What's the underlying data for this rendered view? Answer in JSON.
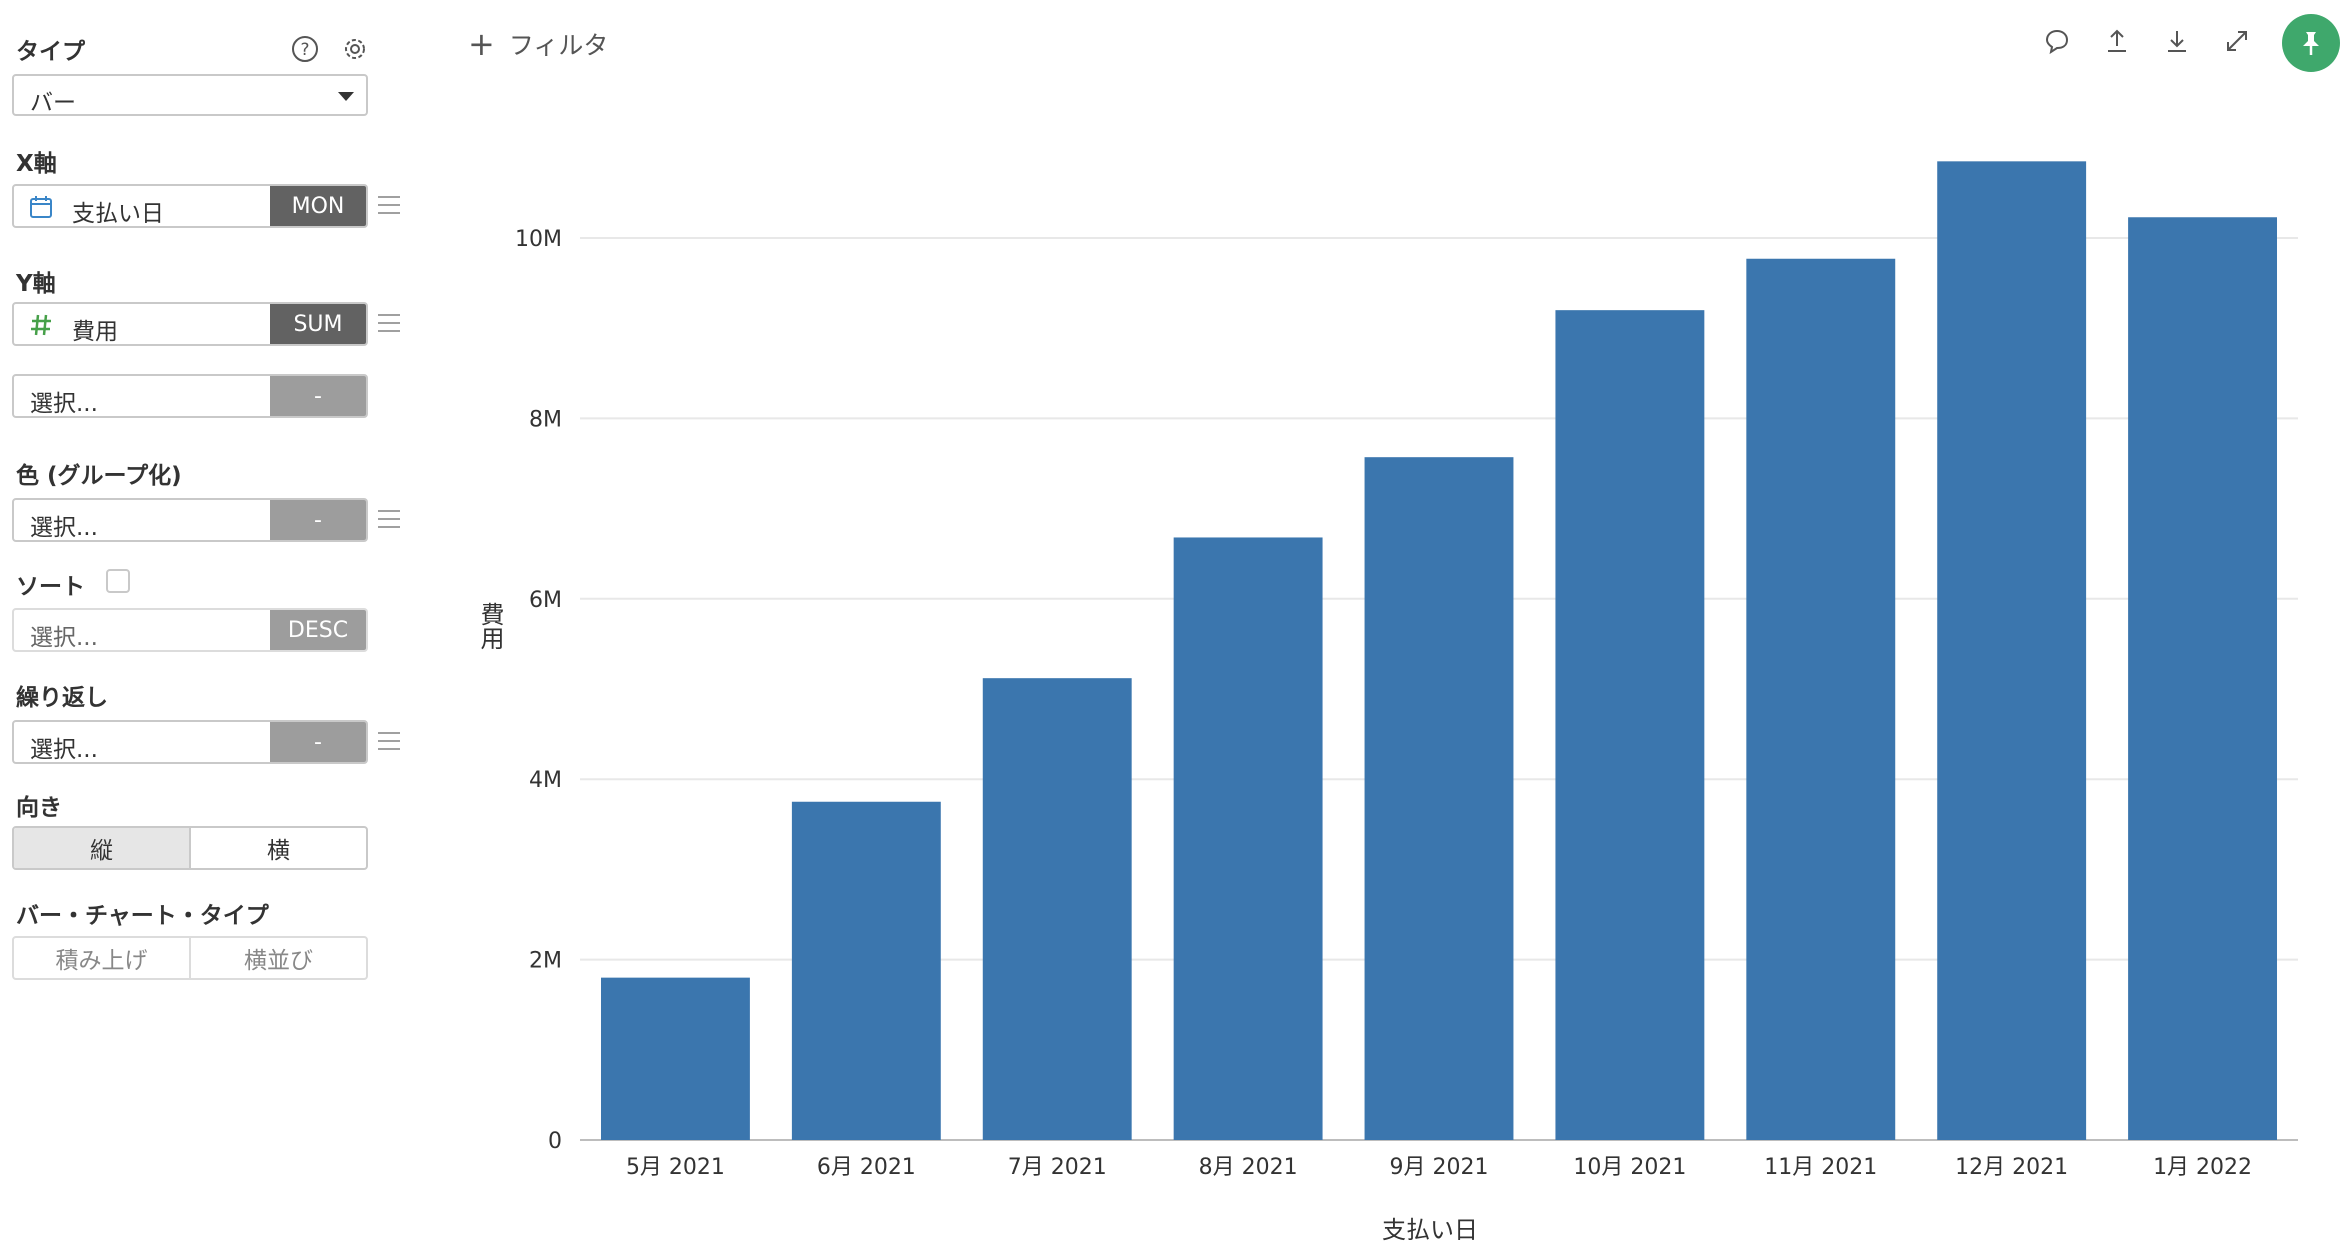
{
  "sidebar": {
    "type_label": "タイプ",
    "type_value": "バー",
    "xaxis_label": "X軸",
    "xaxis_field": "支払い日",
    "xaxis_agg": "MON",
    "yaxis_label": "Y軸",
    "yaxis_field": "費用",
    "yaxis_agg": "SUM",
    "yaxis2_field": "選択...",
    "yaxis2_agg": "-",
    "color_label": "色 (グループ化)",
    "color_field": "選択...",
    "color_agg": "-",
    "sort_label": "ソート",
    "sort_field": "選択...",
    "sort_agg": "DESC",
    "repeat_label": "繰り返し",
    "repeat_field": "選択...",
    "repeat_agg": "-",
    "orientation_label": "向き",
    "orientation_options": [
      "縦",
      "横"
    ],
    "bartype_label": "バー・チャート・タイプ",
    "bartype_options": [
      "積み上げ",
      "横並び"
    ]
  },
  "topbar": {
    "filter_label": "フィルタ"
  },
  "icons": {
    "help": "help-circle-icon",
    "settings": "gear-icon",
    "calendar": "calendar-icon",
    "number": "hash-icon",
    "comment": "comment-icon",
    "upload": "upload-icon",
    "download": "download-icon",
    "expand": "expand-icon",
    "pin": "pin-icon"
  },
  "colors": {
    "bar": "#3b76ae",
    "accent": "#3fa86c",
    "calendar_icon": "#3a86c8",
    "hash_icon": "#46a049"
  },
  "chart_data": {
    "type": "bar",
    "categories": [
      "5月 2021",
      "6月 2021",
      "7月 2021",
      "8月 2021",
      "9月 2021",
      "10月 2021",
      "11月 2021",
      "12月 2021",
      "1月 2022"
    ],
    "values": [
      1800000,
      3750000,
      5120000,
      6680000,
      7570000,
      9200000,
      9770000,
      10850000,
      10230000
    ],
    "xlabel": "支払い日",
    "ylabel": "費用",
    "ylim": [
      0,
      11000000
    ],
    "yticks": [
      0,
      2000000,
      4000000,
      6000000,
      8000000,
      10000000
    ],
    "ytick_labels": [
      "0",
      "2M",
      "4M",
      "6M",
      "8M",
      "10M"
    ],
    "grid": true
  }
}
